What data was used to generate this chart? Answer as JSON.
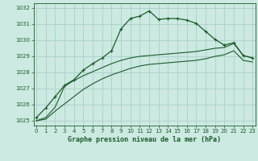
{
  "title": "Graphe pression niveau de la mer (hPa)",
  "bg_color": "#cce9e2",
  "grid_color": "#aed4cc",
  "line_color": "#1a5c28",
  "xlim": [
    -0.3,
    23.3
  ],
  "ylim": [
    1024.7,
    1032.3
  ],
  "yticks": [
    1025,
    1026,
    1027,
    1028,
    1029,
    1030,
    1031,
    1032
  ],
  "xticks": [
    0,
    1,
    2,
    3,
    4,
    5,
    6,
    7,
    8,
    9,
    10,
    11,
    12,
    13,
    14,
    15,
    16,
    17,
    18,
    19,
    20,
    21,
    22,
    23
  ],
  "line1_x": [
    0,
    1,
    2,
    3,
    4,
    5,
    6,
    7,
    8,
    9,
    10,
    11,
    12,
    13,
    14,
    15,
    16,
    17,
    18,
    19,
    20,
    21,
    22,
    23
  ],
  "line1_y": [
    1025.2,
    1025.8,
    1026.5,
    1027.2,
    1027.55,
    1028.15,
    1028.55,
    1028.9,
    1029.35,
    1030.7,
    1031.35,
    1031.5,
    1031.82,
    1031.3,
    1031.35,
    1031.35,
    1031.25,
    1031.05,
    1030.55,
    1030.05,
    1029.7,
    1029.85,
    1029.05,
    1028.9
  ],
  "line2_x": [
    0,
    1,
    2,
    3,
    4,
    5,
    6,
    7,
    8,
    9,
    10,
    11,
    12,
    13,
    14,
    15,
    16,
    17,
    18,
    19,
    20,
    21,
    22,
    23
  ],
  "line2_y": [
    1025.0,
    1025.2,
    1025.85,
    1027.15,
    1027.5,
    1027.8,
    1028.05,
    1028.3,
    1028.55,
    1028.75,
    1028.9,
    1029.0,
    1029.05,
    1029.1,
    1029.15,
    1029.2,
    1029.25,
    1029.3,
    1029.4,
    1029.5,
    1029.55,
    1029.8,
    1029.05,
    1028.9
  ],
  "line3_x": [
    0,
    1,
    2,
    3,
    4,
    5,
    6,
    7,
    8,
    9,
    10,
    11,
    12,
    13,
    14,
    15,
    16,
    17,
    18,
    19,
    20,
    21,
    22,
    23
  ],
  "line3_y": [
    1025.0,
    1025.1,
    1025.6,
    1026.05,
    1026.5,
    1026.95,
    1027.3,
    1027.6,
    1027.85,
    1028.05,
    1028.25,
    1028.4,
    1028.5,
    1028.55,
    1028.6,
    1028.65,
    1028.7,
    1028.75,
    1028.85,
    1029.0,
    1029.1,
    1029.35,
    1028.75,
    1028.65
  ]
}
